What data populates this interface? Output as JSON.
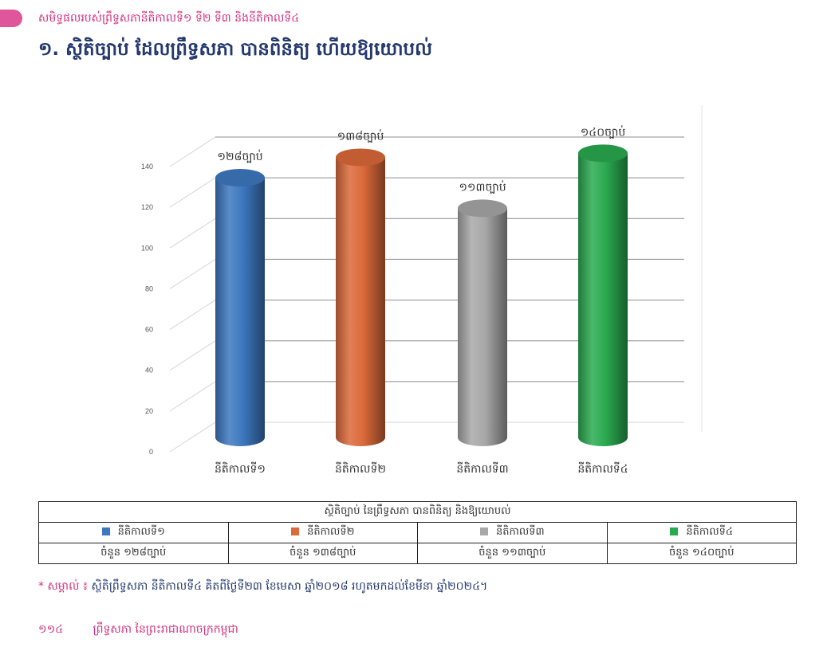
{
  "header": {
    "running_title": "សមិទ្ធផលរបស់ព្រឹទ្ធសភានីតិកាលទី១ ទី២ ទី៣ និងនីតិកាលទី៤",
    "section_title": "១. ស្ថិតិច្បាប់ ដែលព្រឹទ្ធសភា បានពិនិត្យ ហើយឱ្យយោបល់"
  },
  "colors": {
    "accent": "#d4317f",
    "title": "#23386e",
    "blue": "#3d78c0",
    "orange": "#dc6a3a",
    "gray": "#a8a8a8",
    "green": "#2aaa50"
  },
  "chart_data": {
    "type": "bar",
    "style": "3d-cylinder",
    "categories": [
      "នីតិកាលទី១",
      "នីតិកាលទី២",
      "នីតិកាលទី៣",
      "នីតិកាលទី៤"
    ],
    "values": [
      128,
      138,
      113,
      140
    ],
    "data_labels": [
      "១២៨ច្បាប់",
      "១៣៨ច្បាប់",
      "១១៣ច្បាប់",
      "១៤០ច្បាប់"
    ],
    "colors": [
      "#3d78c0",
      "#dc6a3a",
      "#a8a8a8",
      "#2aaa50"
    ],
    "ylim": [
      0,
      140
    ],
    "yticks": [
      0,
      20,
      40,
      60,
      80,
      100,
      120,
      140
    ],
    "grid": true,
    "title": "",
    "xlabel": "",
    "ylabel": ""
  },
  "legend_table": {
    "caption": "ស្ថិតិច្បាប់ នៃព្រឹទ្ធសភា បានពិនិត្យ និងឱ្យយោបល់",
    "columns": [
      {
        "label": "នីតិកាលទី១",
        "count": "ចំនួន ១២៨ច្បាប់"
      },
      {
        "label": "នីតិកាលទី២",
        "count": "ចំនួន ១៣៨ច្បាប់"
      },
      {
        "label": "នីតិកាលទី៣",
        "count": "ចំនួន ១១៣ច្បាប់"
      },
      {
        "label": "នីតិកាលទី៤",
        "count": "ចំនួន ១៤០ច្បាប់"
      }
    ]
  },
  "note": {
    "label": "* សម្គាល់ ៖",
    "text": "ស្ថិតិព្រឹទ្ធសភា នីតិកាលទី៤ គិតពីថ្ងៃទី២៣ ខែមេសា ឆ្នាំ២០១៨ រហូតមកដល់ខែមីនា ឆ្នាំ២០២៤។"
  },
  "footer": {
    "page_number": "១១៤",
    "publication": "ព្រឹទ្ធសភា នៃព្រះរាជាណាចក្រកម្ពុជា"
  }
}
